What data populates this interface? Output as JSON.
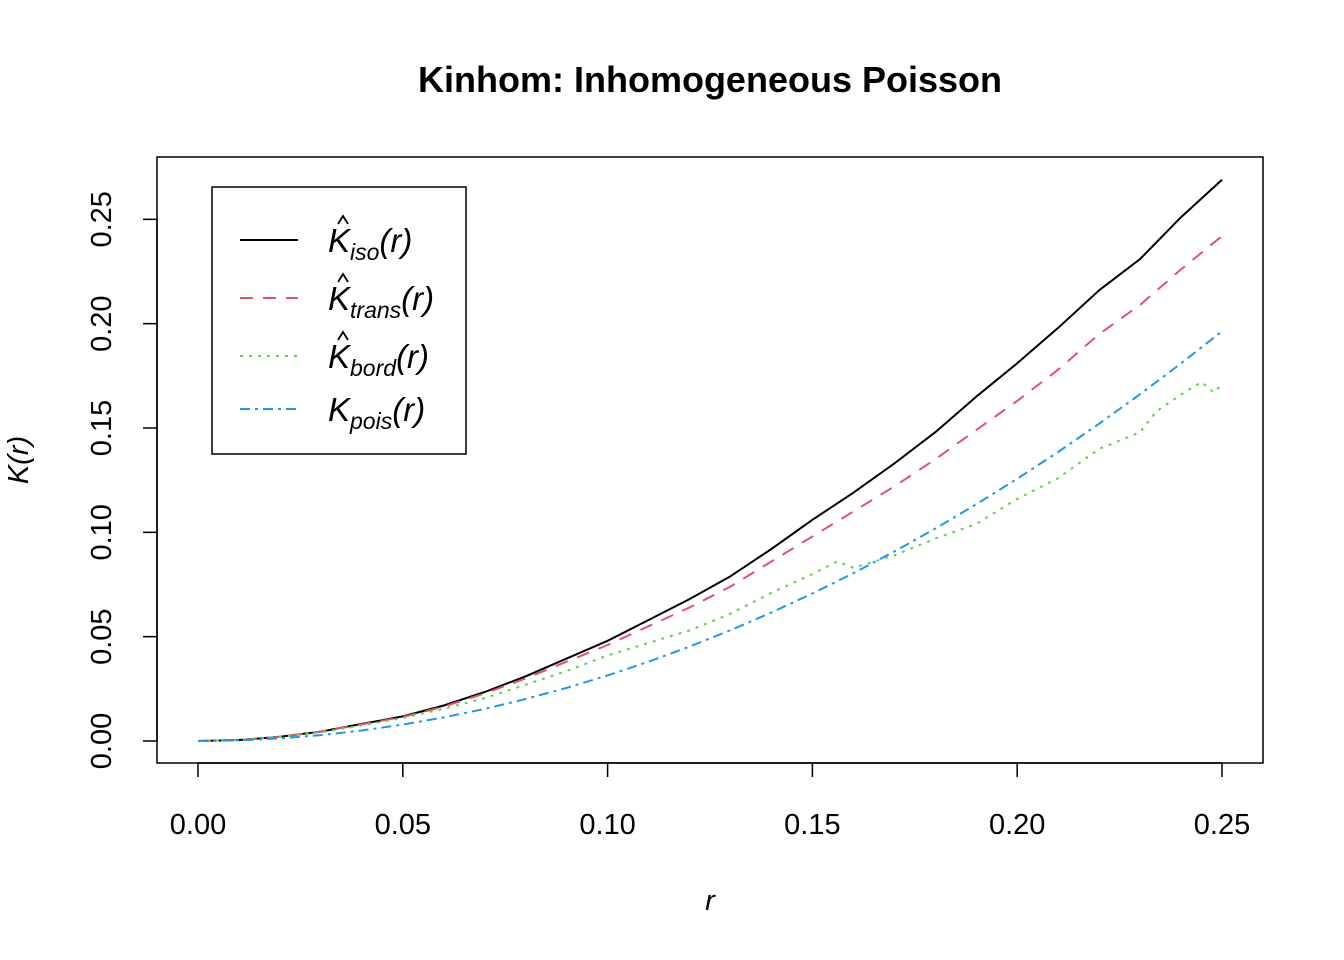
{
  "chart_data": {
    "type": "line",
    "title": "Kinhom: Inhomogeneous Poisson",
    "xlabel": "r",
    "ylabel": "K(r)",
    "xlim": [
      0,
      0.25
    ],
    "ylim": [
      0,
      0.27
    ],
    "x_ticks": [
      "0.00",
      "0.05",
      "0.10",
      "0.15",
      "0.20",
      "0.25"
    ],
    "y_ticks": [
      "0.00",
      "0.05",
      "0.10",
      "0.15",
      "0.20",
      "0.25"
    ],
    "grid": false,
    "legend_position": "top-left",
    "series": [
      {
        "key": "iso",
        "legend": {
          "base": "K",
          "hat": true,
          "sub": "iso",
          "arg": "(r)"
        },
        "color": "#000000",
        "dash": "none",
        "x": [
          0,
          0.01,
          0.02,
          0.03,
          0.04,
          0.05,
          0.06,
          0.07,
          0.08,
          0.09,
          0.1,
          0.11,
          0.12,
          0.13,
          0.14,
          0.15,
          0.16,
          0.17,
          0.18,
          0.19,
          0.2,
          0.21,
          0.22,
          0.23,
          0.24,
          0.25
        ],
        "y": [
          0,
          0.0005,
          0.002,
          0.0045,
          0.0082,
          0.0118,
          0.017,
          0.0235,
          0.031,
          0.0395,
          0.048,
          0.058,
          0.068,
          0.079,
          0.092,
          0.106,
          0.119,
          0.133,
          0.148,
          0.165,
          0.181,
          0.198,
          0.216,
          0.231,
          0.251,
          0.269
        ]
      },
      {
        "key": "trans",
        "legend": {
          "base": "K",
          "hat": true,
          "sub": "trans",
          "arg": "(r)"
        },
        "color": "#DF536B",
        "dash": "13,10",
        "x": [
          0,
          0.01,
          0.02,
          0.03,
          0.04,
          0.05,
          0.06,
          0.07,
          0.08,
          0.09,
          0.1,
          0.11,
          0.12,
          0.13,
          0.14,
          0.15,
          0.16,
          0.17,
          0.18,
          0.19,
          0.2,
          0.21,
          0.22,
          0.23,
          0.24,
          0.25
        ],
        "y": [
          0,
          0.0005,
          0.002,
          0.0045,
          0.008,
          0.0115,
          0.0165,
          0.0228,
          0.03,
          0.038,
          0.046,
          0.055,
          0.064,
          0.074,
          0.086,
          0.098,
          0.11,
          0.122,
          0.135,
          0.149,
          0.163,
          0.178,
          0.195,
          0.209,
          0.226,
          0.242
        ]
      },
      {
        "key": "bord",
        "legend": {
          "base": "K",
          "hat": true,
          "sub": "bord",
          "arg": "(r)"
        },
        "color": "#61D04F",
        "dash": "3,6",
        "x": [
          0,
          0.01,
          0.02,
          0.03,
          0.04,
          0.05,
          0.06,
          0.07,
          0.08,
          0.09,
          0.1,
          0.11,
          0.12,
          0.13,
          0.14,
          0.15,
          0.156,
          0.16,
          0.17,
          0.18,
          0.19,
          0.2,
          0.21,
          0.22,
          0.23,
          0.234,
          0.24,
          0.245,
          0.248,
          0.25
        ],
        "y": [
          0,
          0.0005,
          0.002,
          0.0042,
          0.0075,
          0.011,
          0.0155,
          0.0205,
          0.027,
          0.0335,
          0.041,
          0.047,
          0.053,
          0.061,
          0.071,
          0.08,
          0.086,
          0.083,
          0.089,
          0.097,
          0.104,
          0.116,
          0.126,
          0.14,
          0.148,
          0.158,
          0.166,
          0.172,
          0.167,
          0.171
        ]
      },
      {
        "key": "pois",
        "legend": {
          "base": "K",
          "hat": false,
          "sub": "pois",
          "arg": "(r)"
        },
        "color": "#2297E6",
        "dash": "10,5,3,5",
        "x": [
          0,
          0.01,
          0.02,
          0.03,
          0.04,
          0.05,
          0.06,
          0.07,
          0.08,
          0.09,
          0.1,
          0.11,
          0.12,
          0.13,
          0.14,
          0.15,
          0.16,
          0.17,
          0.18,
          0.19,
          0.2,
          0.21,
          0.22,
          0.23,
          0.24,
          0.25
        ],
        "y": [
          0,
          0.000314,
          0.001257,
          0.002827,
          0.005027,
          0.007854,
          0.01131,
          0.015394,
          0.020106,
          0.025447,
          0.031416,
          0.038013,
          0.045239,
          0.053093,
          0.061575,
          0.070686,
          0.080425,
          0.090792,
          0.101788,
          0.113411,
          0.125664,
          0.138544,
          0.152053,
          0.16619,
          0.180956,
          0.19635
        ]
      }
    ]
  }
}
